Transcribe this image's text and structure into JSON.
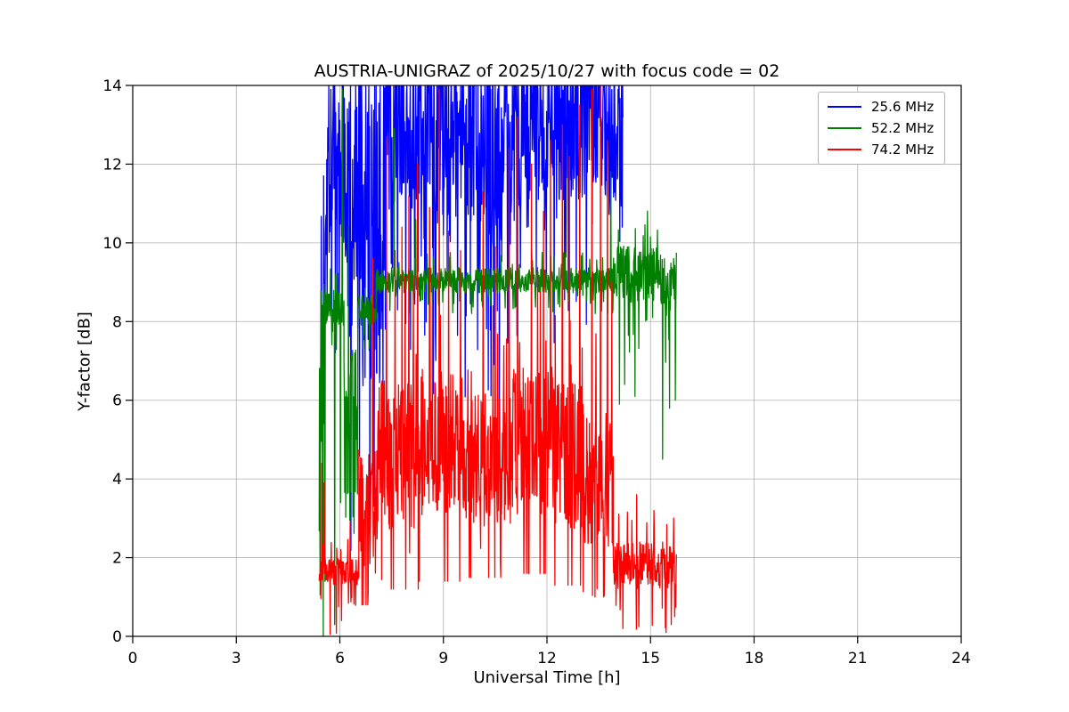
{
  "chart_data": {
    "type": "line",
    "title": "AUSTRIA-UNIGRAZ of 2025/10/27 with focus code = 02",
    "xlabel": "Universal Time [h]",
    "ylabel": "Y-factor [dB]",
    "xlim": [
      0,
      24
    ],
    "ylim": [
      0,
      14
    ],
    "xticks": [
      0,
      3,
      6,
      9,
      12,
      15,
      18,
      21,
      24
    ],
    "yticks": [
      0,
      2,
      4,
      6,
      8,
      10,
      12,
      14
    ],
    "grid": true,
    "grid_color": "#b0b0b0",
    "axis_color": "#000000",
    "background_color": "#ffffff",
    "legend": {
      "position": "upper right"
    },
    "sampling": {
      "dt_hours": 0.01,
      "seed": 1337
    },
    "series": [
      {
        "name": "25.6 MHz",
        "color": "#0000ff",
        "clip_max": 14,
        "segments": [
          {
            "t0": 5.45,
            "t1": 5.58,
            "base": 8.0,
            "noise": 4.3
          },
          {
            "t0": 5.58,
            "t1": 6.2,
            "base": 12.5,
            "noise": 3.0
          },
          {
            "t0": 6.2,
            "t1": 6.55,
            "base": 11.0,
            "noise": 3.5
          },
          {
            "t0": 6.55,
            "t1": 7.3,
            "base": 10.5,
            "noise": 4.3
          },
          {
            "t0": 7.3,
            "t1": 8.6,
            "base": 13.2,
            "noise": 2.4
          },
          {
            "t0": 8.6,
            "t1": 9.4,
            "base": 12.6,
            "noise": 2.8
          },
          {
            "t0": 9.4,
            "t1": 10.2,
            "base": 13.0,
            "noise": 2.6
          },
          {
            "t0": 10.2,
            "t1": 11.3,
            "base": 12.4,
            "noise": 3.1
          },
          {
            "t0": 11.3,
            "t1": 13.7,
            "base": 13.3,
            "noise": 2.2
          },
          {
            "t0": 13.7,
            "t1": 14.2,
            "base": 13.0,
            "noise": 2.3
          }
        ],
        "spikes": [
          [
            5.5,
            3.3
          ],
          [
            5.53,
            11.7
          ],
          [
            9.0,
            10.2
          ],
          [
            10.45,
            9.3
          ],
          [
            14.05,
            11.7
          ],
          [
            14.18,
            10.4
          ]
        ]
      },
      {
        "name": "52.2 MHz",
        "color": "#008000",
        "clip_max": 14,
        "segments": [
          {
            "t0": 5.4,
            "t1": 5.52,
            "base": 4.5,
            "noise": 4.3
          },
          {
            "t0": 5.52,
            "t1": 6.12,
            "base": 8.35,
            "noise": 0.45
          },
          {
            "t0": 6.12,
            "t1": 6.52,
            "base": 5.2,
            "noise": 2.6
          },
          {
            "t0": 6.52,
            "t1": 7.05,
            "base": 8.3,
            "noise": 0.4
          },
          {
            "t0": 7.05,
            "t1": 13.92,
            "base": 9.05,
            "noise": 0.32
          },
          {
            "t0": 13.92,
            "t1": 15.3,
            "base": 9.2,
            "noise": 0.75
          },
          {
            "t0": 15.3,
            "t1": 15.75,
            "base": 9.0,
            "noise": 0.9
          }
        ],
        "spikes": [
          [
            5.57,
            1.4
          ],
          [
            5.85,
            0.3
          ],
          [
            6.02,
            3.4
          ],
          [
            6.07,
            13.9
          ],
          [
            7.57,
            12.9
          ],
          [
            8.2,
            10.6
          ],
          [
            13.85,
            11.8
          ],
          [
            14.1,
            5.9
          ],
          [
            14.25,
            6.4
          ],
          [
            14.55,
            6.1
          ],
          [
            15.0,
            10.15
          ],
          [
            15.35,
            4.5
          ],
          [
            15.55,
            5.8
          ],
          [
            15.72,
            6.0
          ]
        ]
      },
      {
        "name": "74.2 MHz",
        "color": "#ff0000",
        "clip_max": 14,
        "segments": [
          {
            "t0": 5.4,
            "t1": 6.55,
            "base": 1.65,
            "noise": 0.35,
            "min": 0.0
          },
          {
            "t0": 6.55,
            "t1": 7.1,
            "base": 3.2,
            "noise": 1.6,
            "min": 0.8
          },
          {
            "t0": 7.1,
            "t1": 8.3,
            "base": 4.6,
            "noise": 1.9,
            "min": 1.2
          },
          {
            "t0": 8.3,
            "t1": 9.6,
            "base": 4.9,
            "noise": 1.9,
            "min": 1.4
          },
          {
            "t0": 9.6,
            "t1": 11.0,
            "base": 4.5,
            "noise": 1.7,
            "min": 1.5
          },
          {
            "t0": 11.0,
            "t1": 12.2,
            "base": 5.0,
            "noise": 1.9,
            "min": 1.6
          },
          {
            "t0": 12.2,
            "t1": 13.05,
            "base": 4.6,
            "noise": 1.9,
            "min": 1.3
          },
          {
            "t0": 13.05,
            "t1": 13.92,
            "base": 3.9,
            "noise": 1.8,
            "min": 1.0
          },
          {
            "t0": 13.92,
            "t1": 15.75,
            "base": 1.8,
            "noise": 0.6,
            "min": 0.0
          }
        ],
        "spikes": [
          [
            5.48,
            4.4
          ],
          [
            5.55,
            3.9
          ],
          [
            5.72,
            0.05
          ],
          [
            5.9,
            0.08
          ],
          [
            6.05,
            0.4
          ],
          [
            6.3,
            2.9
          ],
          [
            6.95,
            9.6
          ],
          [
            7.35,
            12.7
          ],
          [
            7.6,
            9.8
          ],
          [
            7.8,
            10.4
          ],
          [
            8.0,
            11.2
          ],
          [
            8.25,
            12.0
          ],
          [
            8.6,
            10.9
          ],
          [
            8.88,
            13.9
          ],
          [
            9.15,
            10.3
          ],
          [
            9.5,
            9.8
          ],
          [
            10.15,
            11.3
          ],
          [
            10.5,
            9.9
          ],
          [
            10.9,
            12.4
          ],
          [
            11.15,
            13.2
          ],
          [
            11.55,
            12.0
          ],
          [
            11.9,
            10.8
          ],
          [
            12.1,
            12.6
          ],
          [
            12.45,
            13.0
          ],
          [
            12.65,
            12.2
          ],
          [
            12.95,
            13.5
          ],
          [
            13.3,
            13.9
          ],
          [
            13.55,
            14.0
          ],
          [
            13.75,
            12.6
          ],
          [
            13.88,
            9.0
          ],
          [
            14.2,
            0.2
          ],
          [
            14.6,
            3.6
          ],
          [
            15.1,
            3.2
          ],
          [
            15.45,
            0.1
          ],
          [
            15.6,
            0.3
          ],
          [
            15.7,
            0.5
          ]
        ]
      }
    ]
  }
}
